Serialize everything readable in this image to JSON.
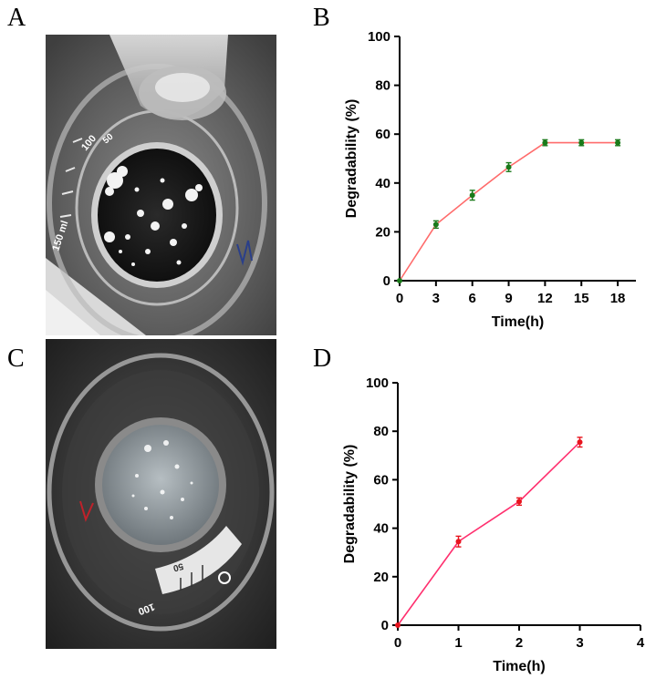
{
  "panels": {
    "a": "A",
    "b": "B",
    "c": "C",
    "d": "D"
  },
  "photo_a": {
    "scale_marks": [
      "150 ml",
      "100",
      "50"
    ],
    "colors": {
      "background": "#5e5e5e",
      "disc": "#151515",
      "glass": "#c9c9c9"
    }
  },
  "photo_c": {
    "scale_marks": [
      "100",
      "50"
    ],
    "colors": {
      "background": "#3a3a3a",
      "disc": "#8f979c",
      "glass": "#b8b8b8"
    }
  },
  "chart_data": [
    {
      "id": "B",
      "type": "line",
      "xlabel": "Time(h)",
      "ylabel": "Degradability (%)",
      "x": [
        0,
        3,
        6,
        9,
        12,
        15,
        18
      ],
      "y": [
        0,
        23,
        35,
        46.5,
        56.5,
        56.5,
        56.5
      ],
      "error": [
        0,
        1.5,
        2,
        1.8,
        1.2,
        1.2,
        1.2
      ],
      "xticks": [
        0,
        3,
        6,
        9,
        12,
        15,
        18
      ],
      "yticks": [
        0,
        20,
        40,
        60,
        80,
        100
      ],
      "xlim": [
        0,
        19.5
      ],
      "ylim": [
        0,
        100
      ],
      "line_color": "#ff6b6b",
      "marker_color": "#1a7a1a",
      "grid": false
    },
    {
      "id": "D",
      "type": "line",
      "xlabel": "Time(h)",
      "ylabel": "Degradability (%)",
      "x": [
        0,
        1,
        2,
        3
      ],
      "y": [
        0,
        34.5,
        51,
        75.5
      ],
      "error": [
        0,
        2.2,
        1.5,
        2
      ],
      "xticks": [
        0,
        1,
        2,
        3,
        4
      ],
      "yticks": [
        0,
        20,
        40,
        60,
        80,
        100
      ],
      "xlim": [
        0,
        4
      ],
      "ylim": [
        0,
        100
      ],
      "line_color": "#ff2f6e",
      "marker_color": "#e8141e",
      "grid": false
    }
  ]
}
